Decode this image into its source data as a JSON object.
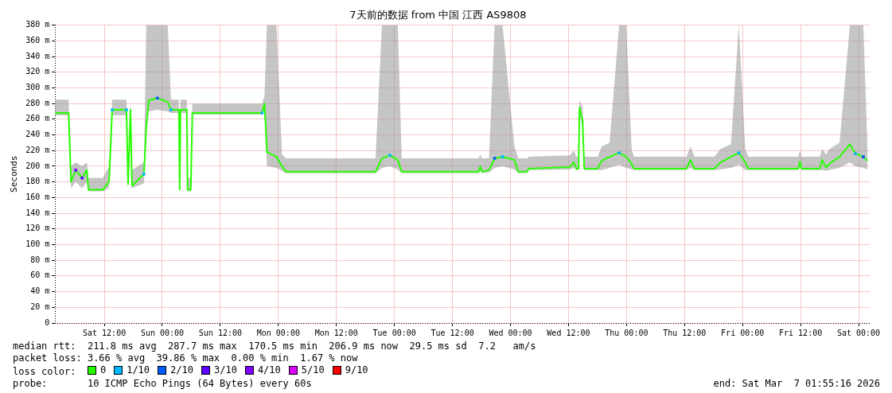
{
  "chart_data": {
    "type": "line",
    "title": "7天前的数据 from 中国 江西 AS9808",
    "ylabel": "Seconds",
    "x": [
      "2026-02-28T01:50",
      "2026-02-28T04:37",
      "2026-02-28T05:07",
      "2026-02-28T06:05",
      "2026-02-28T07:25",
      "2026-02-28T08:23",
      "2026-02-28T08:43",
      "2026-02-28T11:40",
      "2026-02-28T12:59",
      "2026-02-28T13:38",
      "2026-02-28T16:35",
      "2026-02-28T16:55",
      "2026-02-28T17:25",
      "2026-02-28T17:44",
      "2026-02-28T20:12",
      "2026-02-28T20:41",
      "2026-02-28T21:11",
      "2026-02-28T22:59",
      "2026-03-01T01:07",
      "2026-03-01T01:47",
      "2026-03-01T03:25",
      "2026-03-01T03:35",
      "2026-03-01T03:45",
      "2026-03-01T05:04",
      "2026-03-01T05:13",
      "2026-03-01T05:53",
      "2026-03-01T06:13",
      "2026-03-01T20:38",
      "2026-03-01T21:08",
      "2026-03-01T21:38",
      "2026-03-01T23:36",
      "2026-03-02T00:45",
      "2026-03-02T01:34",
      "2026-03-02T20:06",
      "2026-03-02T21:25",
      "2026-03-02T23:04",
      "2026-03-03T00:42",
      "2026-03-03T01:31",
      "2026-03-03T17:26",
      "2026-03-03T17:46",
      "2026-03-03T18:05",
      "2026-03-03T19:34",
      "2026-03-03T20:43",
      "2026-03-03T22:21",
      "2026-03-04T00:49",
      "2026-03-04T01:38",
      "2026-03-04T03:26",
      "2026-03-04T03:46",
      "2026-03-04T12:17",
      "2026-03-04T13:07",
      "2026-03-04T13:36",
      "2026-03-04T14:06",
      "2026-03-04T14:16",
      "2026-03-04T14:55",
      "2026-03-04T15:05",
      "2026-03-04T15:15",
      "2026-03-04T18:02",
      "2026-03-04T18:52",
      "2026-03-04T20:30",
      "2026-03-04T22:28",
      "2026-03-04T23:56",
      "2026-03-05T01:05",
      "2026-03-05T01:35",
      "2026-03-05T12:24",
      "2026-03-05T13:14",
      "2026-03-05T14:03",
      "2026-03-05T18:09",
      "2026-03-05T19:28",
      "2026-03-05T21:36",
      "2026-03-05T23:14",
      "2026-03-06T00:33",
      "2026-03-06T01:12",
      "2026-03-06T11:32",
      "2026-03-06T11:52",
      "2026-03-06T12:11",
      "2026-03-06T15:58",
      "2026-03-06T16:28",
      "2026-03-06T17:17",
      "2026-03-06T17:56",
      "2026-03-06T20:04",
      "2026-03-06T22:12",
      "2026-03-06T23:21",
      "2026-03-07T00:59",
      "2026-03-07T01:49"
    ],
    "series": [
      {
        "name": "0",
        "color": "#26ff00",
        "values": [
          268,
          268,
          180,
          195,
          185,
          195,
          170,
          170,
          180,
          272,
          272,
          177,
          272,
          175,
          190,
          250,
          284,
          287,
          282,
          272,
          272,
          170,
          272,
          272,
          170,
          170,
          268,
          268,
          280,
          218,
          212,
          200,
          193,
          193,
          210,
          214,
          208,
          193,
          193,
          200,
          193,
          195,
          210,
          212,
          208,
          193,
          193,
          197,
          199,
          205,
          197,
          197,
          275,
          259,
          228,
          197,
          197,
          207,
          212,
          217,
          212,
          203,
          197,
          197,
          208,
          197,
          197,
          205,
          212,
          217,
          205,
          197,
          197,
          206,
          197,
          197,
          208,
          198,
          203,
          212,
          228,
          216,
          212,
          207
        ],
        "lower": [
          265,
          265,
          172,
          180,
          172,
          180,
          168,
          168,
          172,
          265,
          265,
          172,
          265,
          172,
          178,
          240,
          270,
          272,
          270,
          268,
          268,
          168,
          268,
          268,
          168,
          168,
          266,
          266,
          270,
          200,
          198,
          194,
          191,
          191,
          198,
          200,
          196,
          191,
          191,
          194,
          191,
          192,
          198,
          200,
          196,
          191,
          191,
          195,
          196,
          198,
          195,
          195,
          265,
          250,
          220,
          195,
          195,
          195,
          198,
          202,
          198,
          196,
          195,
          195,
          198,
          195,
          195,
          196,
          198,
          202,
          195,
          195,
          195,
          198,
          195,
          195,
          195,
          194,
          195,
          198,
          205,
          200,
          198,
          196
        ],
        "upper": [
          285,
          285,
          200,
          205,
          200,
          205,
          185,
          185,
          200,
          285,
          285,
          195,
          285,
          195,
          205,
          380,
          380,
          380,
          380,
          285,
          285,
          185,
          285,
          285,
          185,
          185,
          280,
          280,
          290,
          380,
          380,
          215,
          210,
          210,
          380,
          380,
          380,
          210,
          210,
          215,
          210,
          210,
          380,
          380,
          225,
          210,
          210,
          212,
          214,
          220,
          212,
          212,
          285,
          275,
          245,
          212,
          212,
          225,
          230,
          380,
          380,
          220,
          212,
          212,
          225,
          212,
          212,
          222,
          228,
          380,
          222,
          212,
          212,
          220,
          212,
          212,
          222,
          215,
          222,
          230,
          380,
          380,
          380,
          225
        ]
      },
      {
        "name": "1/10",
        "color": "#00b8ff",
        "type": "scatter",
        "marker": "square",
        "x": [
          "2026-02-28T13:38",
          "2026-02-28T16:35",
          "2026-02-28T20:12",
          "2026-03-01T01:47",
          "2026-03-01T20:38",
          "2026-03-02T23:04",
          "2026-03-03T22:21",
          "2026-03-04T22:28",
          "2026-03-05T23:14",
          "2026-03-06T23:21"
        ],
        "values": [
          272,
          272,
          190,
          272,
          268,
          214,
          212,
          217,
          217,
          216
        ]
      },
      {
        "name": "2/10",
        "color": "#0059ff",
        "type": "scatter",
        "marker": "square",
        "x": [
          "2026-02-28T22:59",
          "2026-03-03T20:43",
          "2026-03-07T00:59"
        ],
        "values": [
          287,
          210,
          212
        ]
      },
      {
        "name": "3/10",
        "color": "#5e00ff",
        "type": "scatter",
        "marker": "square",
        "x": [
          "2026-02-28T07:25"
        ],
        "values": [
          185
        ]
      },
      {
        "name": "4/10",
        "color": "#7e00ff",
        "type": "scatter",
        "marker": "square",
        "x": [
          "2026-02-28T06:05"
        ],
        "values": [
          195
        ]
      },
      {
        "name": "5/10",
        "color": "#dd00ff",
        "type": "scatter",
        "marker": "square",
        "values": [
          null,
          null,
          null,
          null,
          null,
          null,
          null,
          null,
          null,
          null,
          null,
          null,
          null,
          null,
          null,
          null,
          null,
          null,
          null,
          null,
          null,
          null,
          null,
          null,
          null,
          null,
          null,
          null,
          null,
          null,
          null,
          null,
          null,
          null,
          null,
          null,
          null,
          null,
          null,
          null,
          null,
          null,
          null,
          null,
          null,
          null,
          null,
          null,
          null,
          null,
          null,
          null,
          null,
          null,
          null,
          null,
          null,
          null,
          null,
          null,
          null,
          null,
          null,
          null,
          null,
          null,
          null,
          null,
          null,
          null,
          null,
          null,
          null,
          null,
          null,
          null,
          null,
          null,
          null,
          null,
          null,
          null,
          null,
          null
        ]
      },
      {
        "name": "9/10",
        "color": "#ff0000",
        "type": "scatter",
        "marker": "square",
        "values": [
          null,
          null,
          null,
          null,
          null,
          null,
          null,
          null,
          null,
          null,
          null,
          null,
          null,
          null,
          null,
          null,
          null,
          null,
          null,
          null,
          null,
          null,
          null,
          null,
          null,
          null,
          null,
          null,
          null,
          null,
          null,
          null,
          null,
          null,
          null,
          null,
          null,
          null,
          null,
          null,
          null,
          null,
          null,
          null,
          null,
          null,
          null,
          null,
          null,
          null,
          null,
          null,
          null,
          null,
          null,
          null,
          null,
          null,
          null,
          null,
          null,
          null,
          null,
          null,
          null,
          null,
          null,
          null,
          null,
          null,
          null,
          null,
          null,
          null,
          null,
          null,
          null,
          null,
          null,
          null,
          null,
          null,
          null,
          null
        ]
      }
    ],
    "xlim": [
      "2026-02-28T01:50",
      "2026-03-07T02:18"
    ],
    "xticks": [
      {
        "value": "2026-02-28T12:00",
        "label": "Sat 12:00"
      },
      {
        "value": "2026-03-01T00:00",
        "label": "Sun 00:00"
      },
      {
        "value": "2026-03-01T12:00",
        "label": "Sun 12:00"
      },
      {
        "value": "2026-03-02T00:00",
        "label": "Mon 00:00"
      },
      {
        "value": "2026-03-02T12:00",
        "label": "Mon 12:00"
      },
      {
        "value": "2026-03-03T00:00",
        "label": "Tue 00:00"
      },
      {
        "value": "2026-03-03T12:00",
        "label": "Tue 12:00"
      },
      {
        "value": "2026-03-04T00:00",
        "label": "Wed 00:00"
      },
      {
        "value": "2026-03-04T12:00",
        "label": "Wed 12:00"
      },
      {
        "value": "2026-03-05T00:00",
        "label": "Thu 00:00"
      },
      {
        "value": "2026-03-05T12:00",
        "label": "Thu 12:00"
      },
      {
        "value": "2026-03-06T00:00",
        "label": "Fri 00:00"
      },
      {
        "value": "2026-03-06T12:00",
        "label": "Fri 12:00"
      },
      {
        "value": "2026-03-07T00:00",
        "label": "Sat 00:00"
      }
    ],
    "ylim": [
      0,
      380
    ],
    "yticks": [
      0,
      {
        "value": 20,
        "label": "20 m"
      },
      {
        "value": 40,
        "label": "40 m"
      },
      {
        "value": 60,
        "label": "60 m"
      },
      {
        "value": 80,
        "label": "80 m"
      },
      {
        "value": 100,
        "label": "100 m"
      },
      {
        "value": 120,
        "label": "120 m"
      },
      {
        "value": 140,
        "label": "140 m"
      },
      {
        "value": 160,
        "label": "160 m"
      },
      {
        "value": 180,
        "label": "180 m"
      },
      {
        "value": 200,
        "label": "200 m"
      },
      {
        "value": 220,
        "label": "220 m"
      },
      {
        "value": 240,
        "label": "240 m"
      },
      {
        "value": 260,
        "label": "260 m"
      },
      {
        "value": 280,
        "label": "280 m"
      },
      {
        "value": 300,
        "label": "300 m"
      },
      {
        "value": 320,
        "label": "320 m"
      },
      {
        "value": 340,
        "label": "340 m"
      },
      {
        "value": 360,
        "label": "360 m"
      },
      {
        "value": 380,
        "label": "380 m"
      }
    ],
    "grid": true,
    "legend": "bottom",
    "annotations": [
      "median rtt:  211.8 ms avg  287.7 ms max  170.5 ms min  206.9 ms now  29.5 ms sd  7.2   am/s",
      "packet loss: 3.66 % avg  39.86 % max  0.00 % min  1.67 % now",
      "loss color:",
      "probe:       10 ICMP Echo Pings (64 Bytes) every 60s",
      "end: Sat Mar  7 01:55:16 2026"
    ]
  }
}
